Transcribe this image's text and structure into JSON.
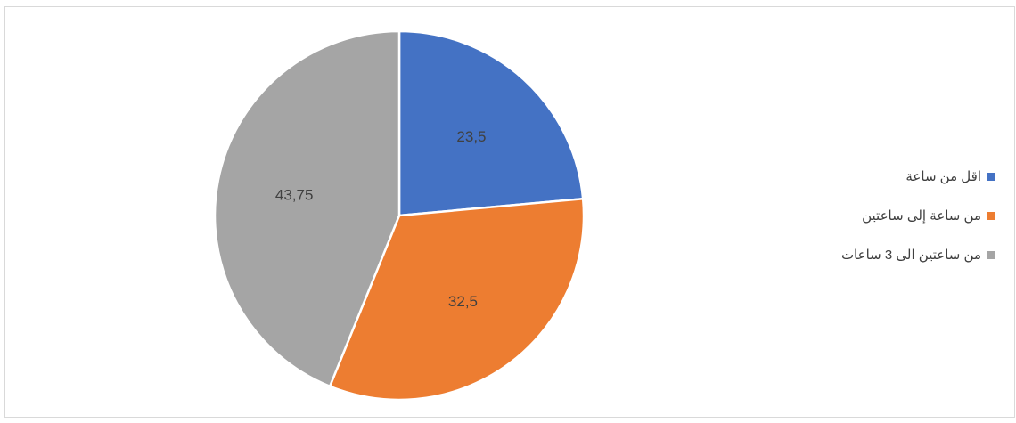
{
  "chart_data": {
    "type": "pie",
    "categories": [
      "اقل من ساعة",
      "من ساعة إلى ساعتين",
      "من ساعتين الى 3 ساعات"
    ],
    "values": [
      23.5,
      32.5,
      43.75
    ],
    "data_labels": [
      "23,5",
      "32,5",
      "43,75"
    ],
    "colors": [
      "#4472c4",
      "#ed7d31",
      "#a5a5a5"
    ],
    "start_angle_deg": 0,
    "direction": "clockwise",
    "legend_position": "right"
  }
}
